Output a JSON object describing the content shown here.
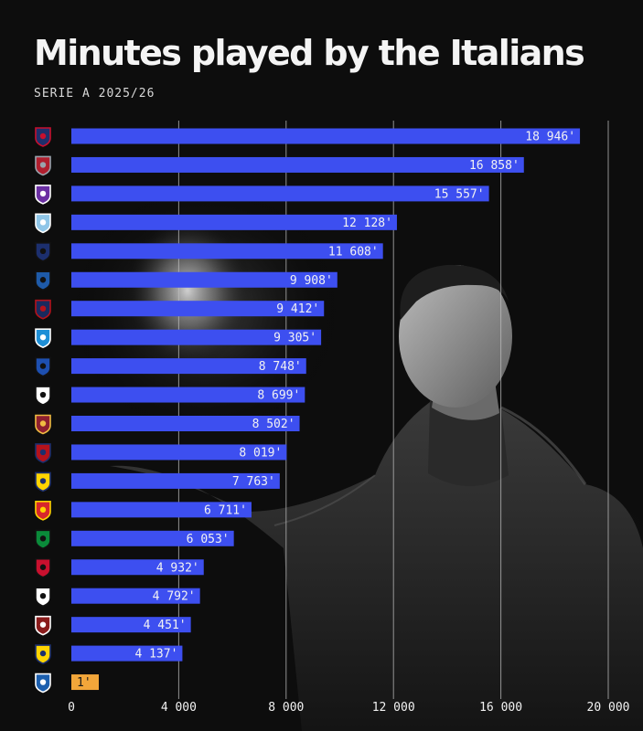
{
  "title": "Minutes played by the Italians",
  "subtitle": "SERIE A 2025/26",
  "colors": {
    "bar": "#3d4ff0",
    "highlight": "#f2a63a",
    "background": "#0d0d0d",
    "grid": "#bdbdbd",
    "label": "#f2f2f2"
  },
  "chart_data": {
    "type": "bar",
    "orientation": "horizontal",
    "title": "Minutes played by the Italians",
    "subtitle": "SERIE A 2025/26",
    "xlim": [
      0,
      20000
    ],
    "x_ticks": [
      0,
      4000,
      8000,
      12000,
      16000,
      20000
    ],
    "x_tick_labels": [
      "0",
      "4 000",
      "8 000",
      "12 000",
      "16 000",
      "20 000"
    ],
    "grid": true,
    "categories": [
      "cagliari-crest",
      "cremonese-crest",
      "fiorentina-crest",
      "lazio-crest",
      "pisa-crest",
      "atalanta-crest",
      "bologna-crest",
      "napoli-crest",
      "inter-crest",
      "juventus-crest",
      "roma-crest",
      "genoa-crest",
      "parma-crest",
      "lecce-crest",
      "sassuolo-crest",
      "milan-crest",
      "udinese-crest",
      "torino-crest",
      "verona-crest",
      "como-crest"
    ],
    "values": [
      18946,
      16858,
      15557,
      12128,
      11608,
      9908,
      9412,
      9305,
      8748,
      8699,
      8502,
      8019,
      7763,
      6711,
      6053,
      4932,
      4792,
      4451,
      4137,
      1
    ],
    "value_labels": [
      "18 946'",
      "16 858'",
      "15 557'",
      "12 128'",
      "11 608'",
      "9 908'",
      "9 412'",
      "9 305'",
      "8 748'",
      "8 699'",
      "8 502'",
      "8 019'",
      "7 763'",
      "6 711'",
      "6 053'",
      "4 932'",
      "4 792'",
      "4 451'",
      "4 137'",
      "1'"
    ],
    "highlight_index": 19
  },
  "crests": [
    {
      "icon": "cagliari-crest",
      "colors": [
        "#1f2f6b",
        "#c8102e"
      ]
    },
    {
      "icon": "cremonese-crest",
      "colors": [
        "#b01e2e",
        "#9aa3ad"
      ]
    },
    {
      "icon": "fiorentina-crest",
      "colors": [
        "#6b2fa3",
        "#ffffff"
      ]
    },
    {
      "icon": "lazio-crest",
      "colors": [
        "#8fc6e8",
        "#ffffff"
      ]
    },
    {
      "icon": "pisa-crest",
      "colors": [
        "#1c2f6e",
        "#111111"
      ]
    },
    {
      "icon": "atalanta-crest",
      "colors": [
        "#1e5aa8",
        "#111111"
      ]
    },
    {
      "icon": "bologna-crest",
      "colors": [
        "#1a2a5e",
        "#b5121b"
      ]
    },
    {
      "icon": "napoli-crest",
      "colors": [
        "#1e8fd6",
        "#ffffff"
      ]
    },
    {
      "icon": "inter-crest",
      "colors": [
        "#1d4fb0",
        "#111111"
      ]
    },
    {
      "icon": "juventus-crest",
      "colors": [
        "#ffffff",
        "#111111"
      ]
    },
    {
      "icon": "roma-crest",
      "colors": [
        "#8e1f2f",
        "#f0bc42"
      ]
    },
    {
      "icon": "genoa-crest",
      "colors": [
        "#b5121b",
        "#1c2f6e"
      ]
    },
    {
      "icon": "parma-crest",
      "colors": [
        "#ffd400",
        "#1c2f6e"
      ]
    },
    {
      "icon": "lecce-crest",
      "colors": [
        "#d7262c",
        "#ffd400"
      ]
    },
    {
      "icon": "sassuolo-crest",
      "colors": [
        "#0a8a3a",
        "#111111"
      ]
    },
    {
      "icon": "milan-crest",
      "colors": [
        "#c8102e",
        "#111111"
      ]
    },
    {
      "icon": "udinese-crest",
      "colors": [
        "#ffffff",
        "#111111"
      ]
    },
    {
      "icon": "torino-crest",
      "colors": [
        "#8a1c1c",
        "#ffffff"
      ]
    },
    {
      "icon": "verona-crest",
      "colors": [
        "#ffd400",
        "#1c2f6e"
      ]
    },
    {
      "icon": "como-crest",
      "colors": [
        "#1c5fae",
        "#ffffff"
      ]
    }
  ]
}
